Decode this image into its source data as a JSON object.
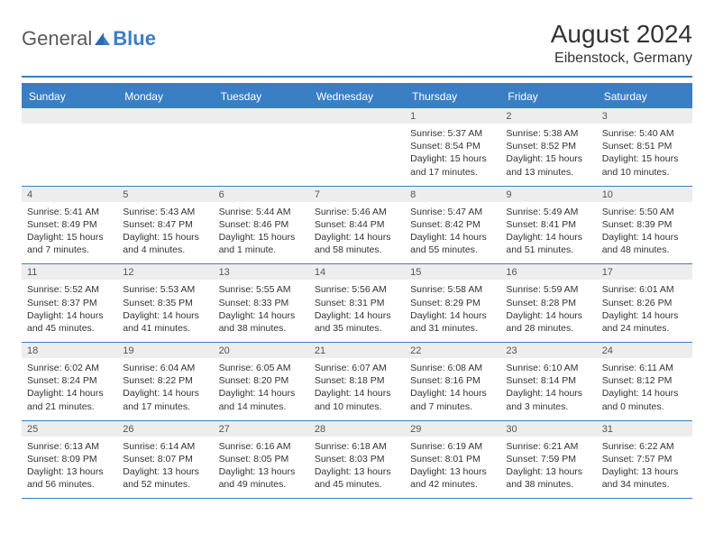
{
  "logo": {
    "general": "General",
    "blue": "Blue"
  },
  "title": "August 2024",
  "location": "Eibenstock, Germany",
  "colors": {
    "accent": "#3a7fc4",
    "header_bg": "#3a7fc4",
    "header_text": "#ffffff",
    "number_row_bg": "#ededed",
    "separator": "#c9c9c9",
    "text": "#333333",
    "background": "#ffffff"
  },
  "day_headers": [
    "Sunday",
    "Monday",
    "Tuesday",
    "Wednesday",
    "Thursday",
    "Friday",
    "Saturday"
  ],
  "weeks": [
    {
      "numbers": [
        "",
        "",
        "",
        "",
        "1",
        "2",
        "3"
      ],
      "details": [
        [],
        [],
        [],
        [],
        [
          "Sunrise: 5:37 AM",
          "Sunset: 8:54 PM",
          "Daylight: 15 hours",
          "and 17 minutes."
        ],
        [
          "Sunrise: 5:38 AM",
          "Sunset: 8:52 PM",
          "Daylight: 15 hours",
          "and 13 minutes."
        ],
        [
          "Sunrise: 5:40 AM",
          "Sunset: 8:51 PM",
          "Daylight: 15 hours",
          "and 10 minutes."
        ]
      ]
    },
    {
      "numbers": [
        "4",
        "5",
        "6",
        "7",
        "8",
        "9",
        "10"
      ],
      "details": [
        [
          "Sunrise: 5:41 AM",
          "Sunset: 8:49 PM",
          "Daylight: 15 hours",
          "and 7 minutes."
        ],
        [
          "Sunrise: 5:43 AM",
          "Sunset: 8:47 PM",
          "Daylight: 15 hours",
          "and 4 minutes."
        ],
        [
          "Sunrise: 5:44 AM",
          "Sunset: 8:46 PM",
          "Daylight: 15 hours",
          "and 1 minute."
        ],
        [
          "Sunrise: 5:46 AM",
          "Sunset: 8:44 PM",
          "Daylight: 14 hours",
          "and 58 minutes."
        ],
        [
          "Sunrise: 5:47 AM",
          "Sunset: 8:42 PM",
          "Daylight: 14 hours",
          "and 55 minutes."
        ],
        [
          "Sunrise: 5:49 AM",
          "Sunset: 8:41 PM",
          "Daylight: 14 hours",
          "and 51 minutes."
        ],
        [
          "Sunrise: 5:50 AM",
          "Sunset: 8:39 PM",
          "Daylight: 14 hours",
          "and 48 minutes."
        ]
      ]
    },
    {
      "numbers": [
        "11",
        "12",
        "13",
        "14",
        "15",
        "16",
        "17"
      ],
      "details": [
        [
          "Sunrise: 5:52 AM",
          "Sunset: 8:37 PM",
          "Daylight: 14 hours",
          "and 45 minutes."
        ],
        [
          "Sunrise: 5:53 AM",
          "Sunset: 8:35 PM",
          "Daylight: 14 hours",
          "and 41 minutes."
        ],
        [
          "Sunrise: 5:55 AM",
          "Sunset: 8:33 PM",
          "Daylight: 14 hours",
          "and 38 minutes."
        ],
        [
          "Sunrise: 5:56 AM",
          "Sunset: 8:31 PM",
          "Daylight: 14 hours",
          "and 35 minutes."
        ],
        [
          "Sunrise: 5:58 AM",
          "Sunset: 8:29 PM",
          "Daylight: 14 hours",
          "and 31 minutes."
        ],
        [
          "Sunrise: 5:59 AM",
          "Sunset: 8:28 PM",
          "Daylight: 14 hours",
          "and 28 minutes."
        ],
        [
          "Sunrise: 6:01 AM",
          "Sunset: 8:26 PM",
          "Daylight: 14 hours",
          "and 24 minutes."
        ]
      ]
    },
    {
      "numbers": [
        "18",
        "19",
        "20",
        "21",
        "22",
        "23",
        "24"
      ],
      "details": [
        [
          "Sunrise: 6:02 AM",
          "Sunset: 8:24 PM",
          "Daylight: 14 hours",
          "and 21 minutes."
        ],
        [
          "Sunrise: 6:04 AM",
          "Sunset: 8:22 PM",
          "Daylight: 14 hours",
          "and 17 minutes."
        ],
        [
          "Sunrise: 6:05 AM",
          "Sunset: 8:20 PM",
          "Daylight: 14 hours",
          "and 14 minutes."
        ],
        [
          "Sunrise: 6:07 AM",
          "Sunset: 8:18 PM",
          "Daylight: 14 hours",
          "and 10 minutes."
        ],
        [
          "Sunrise: 6:08 AM",
          "Sunset: 8:16 PM",
          "Daylight: 14 hours",
          "and 7 minutes."
        ],
        [
          "Sunrise: 6:10 AM",
          "Sunset: 8:14 PM",
          "Daylight: 14 hours",
          "and 3 minutes."
        ],
        [
          "Sunrise: 6:11 AM",
          "Sunset: 8:12 PM",
          "Daylight: 14 hours",
          "and 0 minutes."
        ]
      ]
    },
    {
      "numbers": [
        "25",
        "26",
        "27",
        "28",
        "29",
        "30",
        "31"
      ],
      "details": [
        [
          "Sunrise: 6:13 AM",
          "Sunset: 8:09 PM",
          "Daylight: 13 hours",
          "and 56 minutes."
        ],
        [
          "Sunrise: 6:14 AM",
          "Sunset: 8:07 PM",
          "Daylight: 13 hours",
          "and 52 minutes."
        ],
        [
          "Sunrise: 6:16 AM",
          "Sunset: 8:05 PM",
          "Daylight: 13 hours",
          "and 49 minutes."
        ],
        [
          "Sunrise: 6:18 AM",
          "Sunset: 8:03 PM",
          "Daylight: 13 hours",
          "and 45 minutes."
        ],
        [
          "Sunrise: 6:19 AM",
          "Sunset: 8:01 PM",
          "Daylight: 13 hours",
          "and 42 minutes."
        ],
        [
          "Sunrise: 6:21 AM",
          "Sunset: 7:59 PM",
          "Daylight: 13 hours",
          "and 38 minutes."
        ],
        [
          "Sunrise: 6:22 AM",
          "Sunset: 7:57 PM",
          "Daylight: 13 hours",
          "and 34 minutes."
        ]
      ]
    }
  ]
}
